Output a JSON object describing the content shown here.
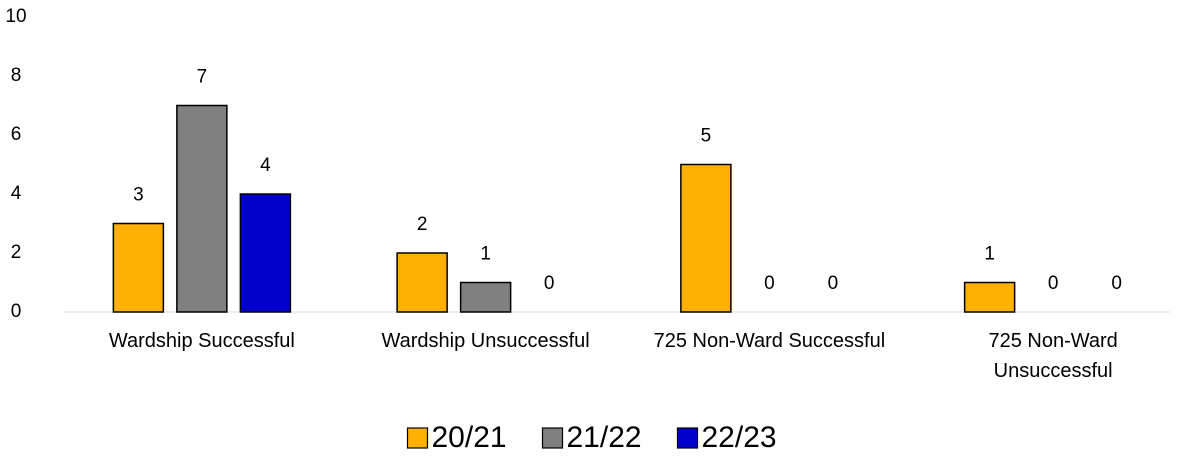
{
  "chart_data": {
    "type": "bar",
    "categories": [
      "Wardship Successful",
      "Wardship Unsuccessful",
      "725 Non-Ward Successful",
      "725 Non-Ward Unsuccessful"
    ],
    "series": [
      {
        "name": "20/21",
        "color": "#ffb000",
        "values": [
          3,
          2,
          5,
          1
        ]
      },
      {
        "name": "21/22",
        "color": "#808080",
        "values": [
          7,
          1,
          0,
          0
        ]
      },
      {
        "name": "22/23",
        "color": "#0000cc",
        "values": [
          4,
          0,
          0,
          0
        ]
      }
    ],
    "ylim": [
      0,
      10
    ],
    "yticks": [
      0,
      2,
      4,
      6,
      8,
      10
    ],
    "grid": false,
    "legend": "bottom"
  }
}
